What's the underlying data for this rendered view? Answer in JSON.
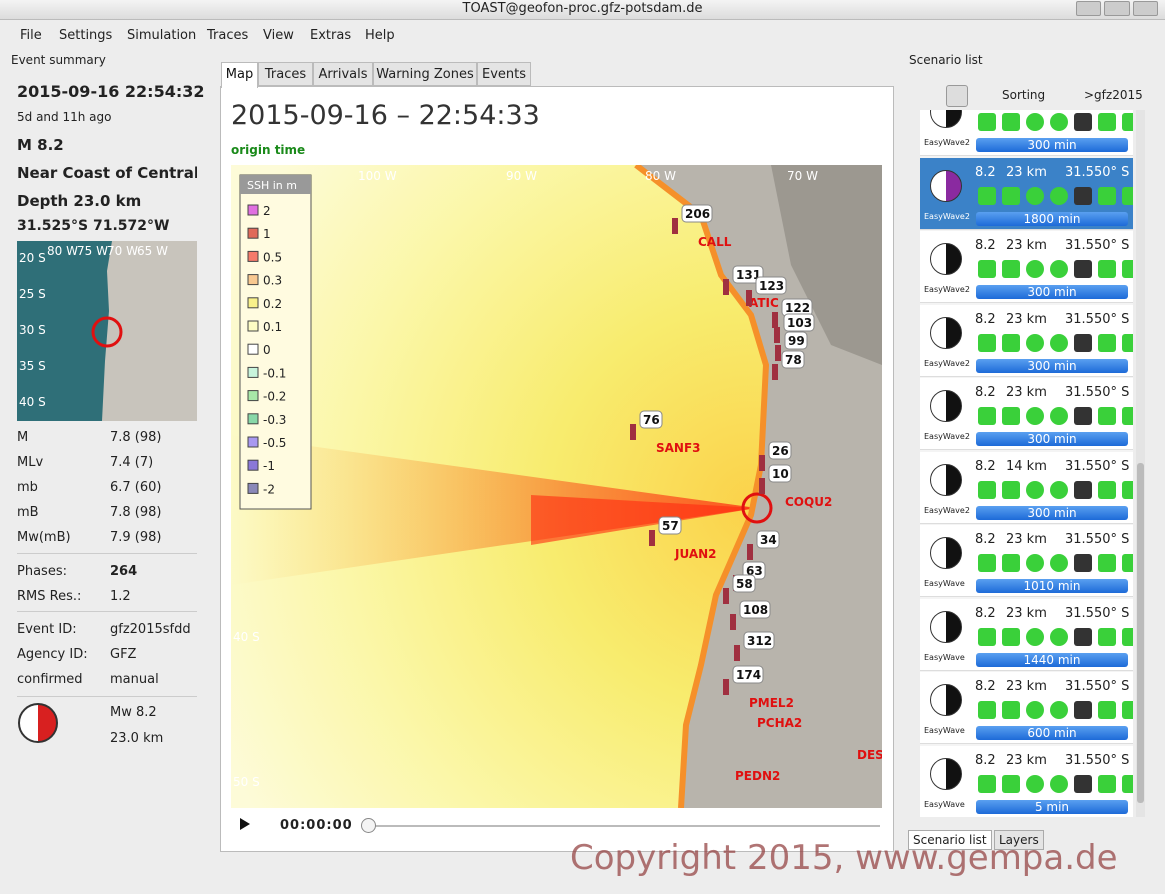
{
  "window": {
    "title": "TOAST@geofon-proc.gfz-potsdam.de"
  },
  "menu": [
    "File",
    "Settings",
    "Simulation",
    "Traces",
    "View",
    "Extras",
    "Help"
  ],
  "event_summary": {
    "panel_title": "Event summary",
    "datetime": "2015-09-16 22:54:32",
    "ago": "5d and 11h ago",
    "magnitude": "M 8.2",
    "region": "Near Coast of Central C",
    "depth": "Depth 23.0 km",
    "coords": "31.525°S  71.572°W",
    "map_lon_labels": [
      "80 W",
      "75 W",
      "70 W",
      "65 W"
    ],
    "map_lat_labels": [
      "20 S",
      "25 S",
      "30 S",
      "35 S",
      "40 S"
    ],
    "magnitudes": [
      [
        "M",
        "7.8 (98)"
      ],
      [
        "MLv",
        "7.4 (7)"
      ],
      [
        "mb",
        "6.7 (60)"
      ],
      [
        "mB",
        "7.8 (98)"
      ],
      [
        "Mw(mB)",
        "7.9 (98)"
      ]
    ],
    "phases": [
      [
        "Phases:",
        "264"
      ],
      [
        "RMS Res.:",
        "1.2"
      ]
    ],
    "ids": [
      [
        "Event ID:",
        "gfz2015sfdd"
      ],
      [
        "Agency ID:",
        "GFZ"
      ],
      [
        "confirmed",
        "manual"
      ]
    ],
    "focal": [
      "Mw 8.2",
      "23.0 km"
    ]
  },
  "tabs": [
    "Map",
    "Traces",
    "Arrivals",
    "Warning Zones",
    "Events"
  ],
  "map": {
    "time": "2015-09-16 – 22:54:33",
    "origin_label": "origin time",
    "lon_labels": [
      "100 W",
      "90 W",
      "80 W",
      "70 W"
    ],
    "lat_labels": [
      "40 S",
      "50 S"
    ],
    "legend": {
      "title": "SSH in m",
      "items": [
        {
          "label": "2",
          "color": "#e070e0"
        },
        {
          "label": "1",
          "color": "#e06a5a"
        },
        {
          "label": "0.5",
          "color": "#f57a6a"
        },
        {
          "label": "0.3",
          "color": "#f8c890"
        },
        {
          "label": "0.2",
          "color": "#f8f08a"
        },
        {
          "label": "0.1",
          "color": "#fdfcc4"
        },
        {
          "label": "0",
          "color": "#ffffff"
        },
        {
          "label": "-0.1",
          "color": "#c8f4dc"
        },
        {
          "label": "-0.2",
          "color": "#a8e8a8"
        },
        {
          "label": "-0.3",
          "color": "#88d8a8"
        },
        {
          "label": "-0.5",
          "color": "#a898f0"
        },
        {
          "label": "-1",
          "color": "#8a78d8"
        },
        {
          "label": "-2",
          "color": "#8a88b8"
        }
      ]
    },
    "stations": [
      {
        "value": "206",
        "name": "CALL"
      },
      {
        "value": "131",
        "name": "ATIC"
      },
      {
        "value": "123"
      },
      {
        "value": "122"
      },
      {
        "value": "103"
      },
      {
        "value": "99"
      },
      {
        "value": "78"
      },
      {
        "value": "76",
        "name": "SANF3"
      },
      {
        "value": "57",
        "name": "JUAN2"
      },
      {
        "value": "26"
      },
      {
        "value": "10",
        "name": "COQU2"
      },
      {
        "value": "34"
      },
      {
        "value": "63"
      },
      {
        "value": "58"
      },
      {
        "value": "108"
      },
      {
        "value": "312"
      },
      {
        "value": "174",
        "name": "PMEL2"
      },
      {
        "name": "PCHA2"
      },
      {
        "name": "PEDN2"
      },
      {
        "name": "DESE"
      }
    ],
    "player_time": "00:00:00"
  },
  "scenario_list": {
    "panel_title": "Scenario list",
    "sorting": "Sorting",
    "filter": ">gfz2015",
    "items": [
      {
        "model": "EasyWave2",
        "duration": "300 min"
      },
      {
        "mag": "8.2",
        "depth": "23 km",
        "lat": "31.550° S",
        "model": "EasyWave2",
        "duration": "1800 min"
      },
      {
        "mag": "8.2",
        "depth": "23 km",
        "lat": "31.550° S",
        "model": "EasyWave2",
        "duration": "300 min"
      },
      {
        "mag": "8.2",
        "depth": "23 km",
        "lat": "31.550° S",
        "model": "EasyWave2",
        "duration": "300 min"
      },
      {
        "mag": "8.2",
        "depth": "23 km",
        "lat": "31.550° S",
        "model": "EasyWave2",
        "duration": "300 min"
      },
      {
        "mag": "8.2",
        "depth": "14 km",
        "lat": "31.550° S",
        "model": "EasyWave2",
        "duration": "300 min"
      },
      {
        "mag": "8.2",
        "depth": "23 km",
        "lat": "31.550° S",
        "model": "EasyWave",
        "duration": "1010 min"
      },
      {
        "mag": "8.2",
        "depth": "23 km",
        "lat": "31.550° S",
        "model": "EasyWave",
        "duration": "1440 min"
      },
      {
        "mag": "8.2",
        "depth": "23 km",
        "lat": "31.550° S",
        "model": "EasyWave",
        "duration": "600 min"
      },
      {
        "mag": "8.2",
        "depth": "23 km",
        "lat": "31.550° S",
        "model": "EasyWave",
        "duration": "5 min"
      }
    ],
    "bottom_tabs": [
      "Scenario list",
      "Layers"
    ]
  },
  "copyright": "Copyright 2015, www.gempa.de"
}
